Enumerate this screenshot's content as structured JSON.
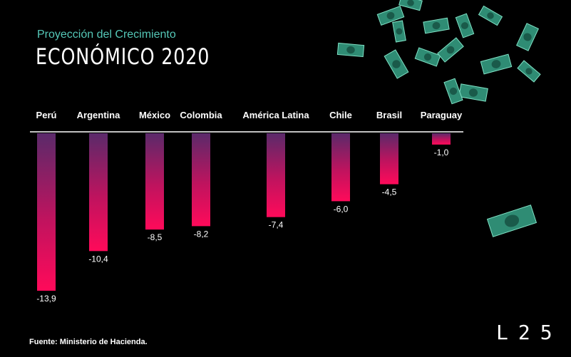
{
  "subtitle": "Proyección del Crecimiento",
  "title": "ECONÓMICO 2020",
  "source": "Fuente: Ministerio de Hacienda.",
  "logo": "L25",
  "colors": {
    "background": "#000000",
    "subtitle": "#55c8b8",
    "bar_top": "#5a2a6a",
    "bar_bottom": "#ff0a5a",
    "money": "#3fa88c"
  },
  "decorations": [
    "money-bill-icon"
  ],
  "chart_data": {
    "type": "bar",
    "orientation": "vertical-negative",
    "categories": [
      "Perú",
      "Argentina",
      "México",
      "Colombia",
      "América Latina",
      "Chile",
      "Brasil",
      "Paraguay"
    ],
    "values": [
      -13.9,
      -10.4,
      -8.5,
      -8.2,
      -7.4,
      -6.0,
      -4.5,
      -1.0
    ],
    "labels": [
      "-13,9",
      "-10,4",
      "-8,5",
      "-8,2",
      "-7,4",
      "-6,0",
      "-4,5",
      "-1,0"
    ],
    "ylim": [
      -13.9,
      0
    ],
    "grid": false,
    "legend": "none"
  }
}
